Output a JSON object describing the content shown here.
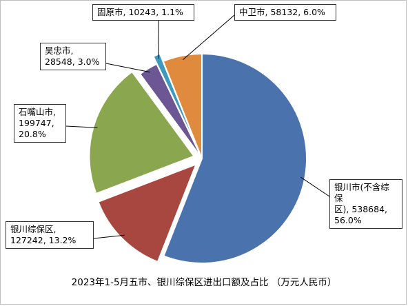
{
  "chart_data": {
    "type": "pie",
    "title": "2023年1-5月五市、银川综保区进出口额及占比 （万元人民币）",
    "slices": [
      {
        "name": "银川市(不含综保区)",
        "value": 538684,
        "percent": "56.0%",
        "label": "银川市(不含综保\n区), 538684,\n56.0%",
        "color": "#4a73ad",
        "exploded": false
      },
      {
        "name": "银川综保区",
        "value": 127242,
        "percent": "13.2%",
        "label": "银川综保区,\n127242, 13.2%",
        "color": "#a8473f",
        "exploded": true
      },
      {
        "name": "石嘴山市",
        "value": 199747,
        "percent": "20.8%",
        "label": "石嘴山市,\n199747,\n20.8%",
        "color": "#8aa64e",
        "exploded": true
      },
      {
        "name": "吴忠市",
        "value": 28548,
        "percent": "3.0%",
        "label": "吴忠市,\n28548, 3.0%",
        "color": "#6c5694",
        "exploded": false
      },
      {
        "name": "固原市",
        "value": 10243,
        "percent": "1.1%",
        "label": "固原市, 10243, 1.1%",
        "color": "#3c9bbd",
        "exploded": true
      },
      {
        "name": "中卫市",
        "value": 58132,
        "percent": "6.0%",
        "label": "中卫市, 58132, 6.0%",
        "color": "#e08a3e",
        "exploded": false
      }
    ]
  }
}
